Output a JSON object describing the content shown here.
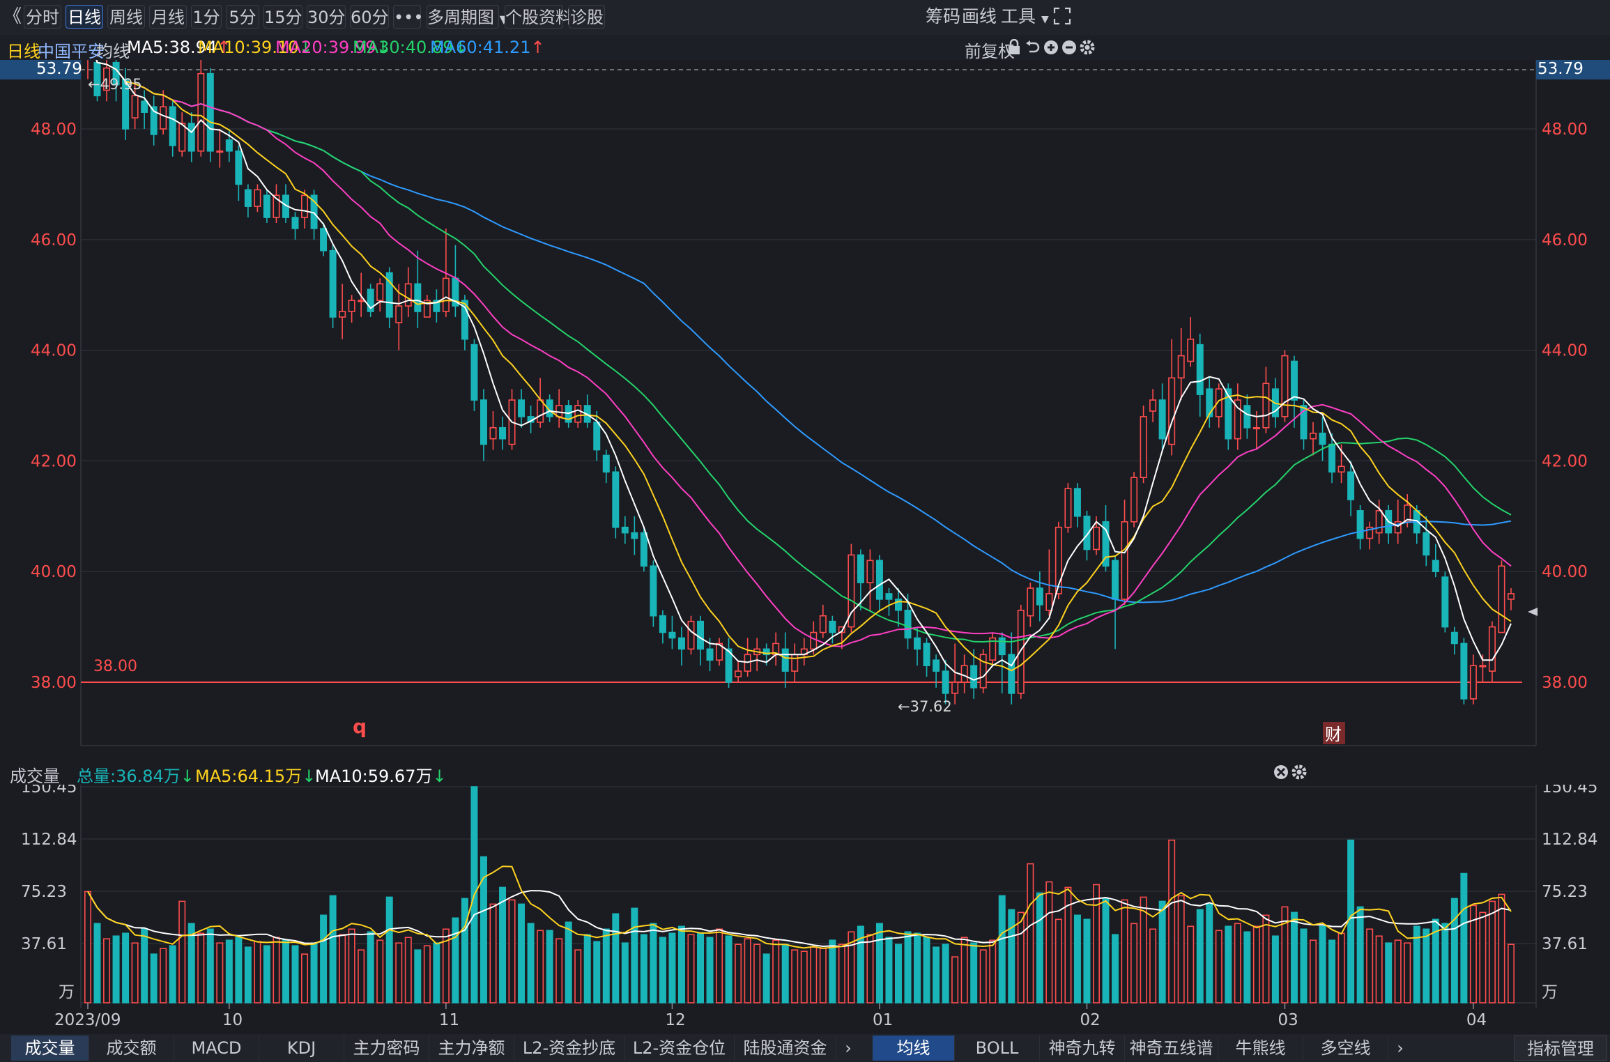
{
  "toolbar": {
    "back": "《",
    "tabs": [
      "分时",
      "日线",
      "周线",
      "月线",
      "1分",
      "5分",
      "15分",
      "30分",
      "60分",
      "•••"
    ],
    "active_tab": "日线",
    "multi_period": "多周期图",
    "stock_info": "个股资料",
    "diagnose": "诊股",
    "chips": "筹码",
    "draw": "画线",
    "tools": "工具",
    "fullscreen_icon": "expand-icon"
  },
  "legend": {
    "period": "日线",
    "stock_name": "中国平安",
    "ma_label": "均线",
    "ma5": "MA5:38.94",
    "ma10": "MA10:39.10",
    "ma20": "MA20:39.99",
    "ma30": "MA30:40.89",
    "ma60": "MA60:41.21",
    "ma5_arrow": "↑",
    "ma10_arrow": "↓",
    "ma20_arrow": "↓",
    "ma30_arrow": "↓",
    "ma60_arrow": "↑",
    "adjust": "前复权"
  },
  "colors": {
    "up": "#ff4d4d",
    "down": "#19b5b8",
    "ma5": "#ffffff",
    "ma10": "#ffd21f",
    "ma20": "#ff3fc4",
    "ma30": "#25d36b",
    "ma60": "#2f9bff",
    "axis_red": "#ff4d4d"
  },
  "price_axis": {
    "top_label": "53.79",
    "ticks": [
      "48.00",
      "46.00",
      "44.00",
      "42.00",
      "40.00",
      "38.00"
    ],
    "support_line_label": "38.00",
    "high_marker": "←49.95",
    "low_marker": "←37.62",
    "marker_q": "q",
    "marker_cai": "财"
  },
  "volume": {
    "title": "成交量",
    "total": "总量:36.84万",
    "ma5": "MA5:64.15万",
    "ma10": "MA10:59.67万",
    "ticks": [
      "150.45",
      "112.84",
      "75.23",
      "37.61"
    ],
    "unit": "万"
  },
  "date_axis": [
    "2023/09",
    "10",
    "11",
    "12",
    "01",
    "02",
    "03",
    "04"
  ],
  "bottom_tabs_left": [
    "成交量",
    "成交额",
    "MACD",
    "KDJ",
    "主力密码",
    "主力净额",
    "L2-资金抄底",
    "L2-资金仓位",
    "陆股通资金"
  ],
  "bottom_tabs_right": [
    "均线",
    "BOLL",
    "神奇九转",
    "神奇五线谱",
    "牛熊线",
    "多空线"
  ],
  "bottom_active_left": "成交量",
  "bottom_active_right": "均线",
  "indicator_manage": "指标管理",
  "chart_data": {
    "type": "candlestick",
    "price_range": [
      36.75,
      53.79
    ],
    "volume_range": [
      0,
      150.45
    ],
    "months": [
      "2023/09",
      "10",
      "11",
      "12",
      "01",
      "02",
      "03",
      "04"
    ],
    "candles": [
      [
        49.4,
        49.8,
        48.9,
        49.95,
        75
      ],
      [
        49.2,
        48.6,
        48.5,
        49.4,
        52
      ],
      [
        48.7,
        49.1,
        48.5,
        49.3,
        41
      ],
      [
        49.2,
        48.8,
        48.5,
        49.4,
        43
      ],
      [
        48.9,
        48.0,
        47.8,
        49.1,
        45
      ],
      [
        48.2,
        48.6,
        48.0,
        48.9,
        38
      ],
      [
        48.5,
        48.3,
        48.0,
        48.7,
        48
      ],
      [
        48.4,
        47.9,
        47.7,
        48.6,
        30
      ],
      [
        48.0,
        48.4,
        47.9,
        48.7,
        34
      ],
      [
        48.4,
        47.7,
        47.5,
        48.5,
        36
      ],
      [
        47.6,
        48.1,
        47.5,
        48.3,
        68
      ],
      [
        48.1,
        47.6,
        47.4,
        48.3,
        52
      ],
      [
        47.6,
        49.0,
        47.5,
        49.3,
        45
      ],
      [
        49.0,
        47.6,
        47.4,
        49.1,
        48
      ],
      [
        47.6,
        47.6,
        47.3,
        48.0,
        38
      ],
      [
        47.8,
        47.6,
        47.4,
        48.0,
        40
      ],
      [
        47.6,
        47.0,
        46.7,
        47.7,
        42
      ],
      [
        46.9,
        46.6,
        46.4,
        47.0,
        35
      ],
      [
        46.6,
        46.9,
        46.5,
        47.0,
        39
      ],
      [
        46.8,
        46.4,
        46.3,
        46.9,
        36
      ],
      [
        46.4,
        46.8,
        46.3,
        47.0,
        42
      ],
      [
        46.8,
        46.4,
        46.3,
        47.0,
        40
      ],
      [
        46.4,
        46.2,
        46.0,
        46.5,
        36
      ],
      [
        46.4,
        46.8,
        46.2,
        46.9,
        30
      ],
      [
        46.8,
        46.2,
        46.0,
        46.9,
        38
      ],
      [
        46.2,
        45.8,
        45.7,
        46.3,
        58
      ],
      [
        45.8,
        44.6,
        44.4,
        45.9,
        72
      ],
      [
        44.6,
        44.7,
        44.2,
        45.2,
        44
      ],
      [
        44.7,
        44.9,
        44.5,
        45.0,
        48
      ],
      [
        44.9,
        44.9,
        44.6,
        45.4,
        33
      ],
      [
        45.1,
        44.7,
        44.6,
        45.2,
        46
      ],
      [
        44.9,
        45.2,
        44.7,
        45.3,
        40
      ],
      [
        45.4,
        44.6,
        44.4,
        45.5,
        71
      ],
      [
        44.5,
        44.8,
        44.0,
        45.2,
        38
      ],
      [
        44.8,
        45.2,
        44.6,
        45.5,
        42
      ],
      [
        45.2,
        44.7,
        44.4,
        45.8,
        33
      ],
      [
        44.6,
        44.9,
        44.6,
        45.0,
        36
      ],
      [
        44.9,
        44.7,
        44.5,
        45.1,
        38
      ],
      [
        44.7,
        45.3,
        44.6,
        46.2,
        48
      ],
      [
        45.3,
        44.8,
        44.6,
        45.9,
        56
      ],
      [
        44.9,
        44.2,
        44.0,
        45.0,
        70
      ],
      [
        44.1,
        43.1,
        42.9,
        44.2,
        152
      ],
      [
        43.1,
        42.3,
        42.0,
        43.3,
        100
      ],
      [
        42.4,
        42.6,
        42.2,
        42.9,
        66
      ],
      [
        42.6,
        42.4,
        42.2,
        42.8,
        78
      ],
      [
        42.3,
        43.1,
        42.2,
        43.3,
        69
      ],
      [
        43.1,
        42.8,
        42.6,
        43.3,
        66
      ],
      [
        42.8,
        42.7,
        42.5,
        43.0,
        52
      ],
      [
        42.7,
        43.1,
        42.6,
        43.5,
        47
      ],
      [
        43.1,
        42.8,
        42.7,
        43.2,
        47
      ],
      [
        42.8,
        43.0,
        42.6,
        43.3,
        41
      ],
      [
        43.0,
        42.7,
        42.6,
        43.1,
        53
      ],
      [
        42.7,
        43.0,
        42.6,
        43.1,
        33
      ],
      [
        43.0,
        42.7,
        42.6,
        43.2,
        44
      ],
      [
        42.7,
        42.2,
        42.0,
        42.9,
        39
      ],
      [
        42.1,
        41.8,
        41.6,
        42.2,
        48
      ],
      [
        41.8,
        40.8,
        40.6,
        41.9,
        59
      ],
      [
        40.8,
        40.7,
        40.5,
        41.0,
        38
      ],
      [
        40.7,
        40.6,
        40.3,
        41.0,
        63
      ],
      [
        40.7,
        40.1,
        40.0,
        40.8,
        44
      ],
      [
        40.1,
        39.2,
        39.0,
        40.2,
        52
      ],
      [
        39.2,
        38.9,
        38.7,
        39.3,
        42
      ],
      [
        38.9,
        38.8,
        38.6,
        39.2,
        45
      ],
      [
        38.8,
        38.6,
        38.3,
        39.0,
        50
      ],
      [
        38.6,
        39.1,
        38.5,
        39.2,
        44
      ],
      [
        39.1,
        38.6,
        38.3,
        39.2,
        45
      ],
      [
        38.6,
        38.4,
        38.2,
        38.8,
        42
      ],
      [
        38.4,
        38.7,
        38.3,
        38.8,
        48
      ],
      [
        38.6,
        38.0,
        37.9,
        38.8,
        43
      ],
      [
        38.1,
        38.2,
        38.0,
        38.4,
        37
      ],
      [
        38.2,
        38.5,
        38.1,
        38.8,
        41
      ],
      [
        38.5,
        38.6,
        38.2,
        38.8,
        37
      ],
      [
        38.6,
        38.5,
        38.3,
        38.7,
        30
      ],
      [
        38.5,
        38.7,
        38.3,
        38.9,
        40
      ],
      [
        38.6,
        38.2,
        37.9,
        38.9,
        37
      ],
      [
        38.2,
        38.5,
        38.0,
        38.7,
        33
      ],
      [
        38.5,
        38.6,
        38.3,
        38.8,
        32
      ],
      [
        38.6,
        38.9,
        38.5,
        39.1,
        35
      ],
      [
        38.9,
        39.2,
        38.8,
        39.4,
        34
      ],
      [
        39.1,
        38.9,
        38.7,
        39.2,
        40
      ],
      [
        38.9,
        39.0,
        38.6,
        39.0,
        37
      ],
      [
        39.0,
        40.3,
        38.9,
        40.5,
        46
      ],
      [
        40.3,
        39.8,
        39.3,
        40.4,
        50
      ],
      [
        39.8,
        40.2,
        39.3,
        40.4,
        44
      ],
      [
        40.2,
        39.5,
        39.3,
        40.3,
        52
      ],
      [
        39.6,
        39.5,
        39.2,
        39.7,
        42
      ],
      [
        39.5,
        39.3,
        39.0,
        39.7,
        37
      ],
      [
        39.3,
        38.8,
        38.6,
        39.6,
        46
      ],
      [
        38.8,
        38.6,
        38.3,
        39.0,
        45
      ],
      [
        38.7,
        38.3,
        38.1,
        38.8,
        42
      ],
      [
        38.4,
        38.2,
        37.9,
        38.5,
        35
      ],
      [
        38.2,
        37.8,
        37.6,
        38.4,
        37
      ],
      [
        37.8,
        38.0,
        37.6,
        38.7,
        28
      ],
      [
        38.0,
        38.3,
        37.8,
        38.5,
        42
      ],
      [
        38.3,
        37.9,
        37.7,
        38.6,
        38
      ],
      [
        37.9,
        38.5,
        37.8,
        38.6,
        33
      ],
      [
        38.4,
        38.8,
        38.3,
        38.9,
        40
      ],
      [
        38.8,
        38.5,
        37.8,
        38.9,
        72
      ],
      [
        38.5,
        37.8,
        37.6,
        38.9,
        62
      ],
      [
        37.8,
        39.3,
        37.7,
        39.4,
        60
      ],
      [
        39.2,
        39.7,
        39.0,
        39.8,
        95
      ],
      [
        39.7,
        39.4,
        39.1,
        40.0,
        74
      ],
      [
        39.3,
        39.6,
        39.2,
        40.4,
        82
      ],
      [
        39.6,
        40.8,
        39.5,
        40.9,
        55
      ],
      [
        40.8,
        41.5,
        40.7,
        41.6,
        78
      ],
      [
        41.5,
        41.0,
        40.8,
        41.6,
        58
      ],
      [
        41.0,
        40.4,
        40.2,
        41.1,
        55
      ],
      [
        40.4,
        40.8,
        40.3,
        41.0,
        80
      ],
      [
        40.9,
        40.1,
        40.0,
        41.2,
        70
      ],
      [
        40.2,
        39.5,
        38.6,
        40.3,
        44
      ],
      [
        39.5,
        40.9,
        39.4,
        41.3,
        69
      ],
      [
        40.9,
        41.7,
        40.8,
        41.8,
        52
      ],
      [
        41.7,
        42.8,
        41.6,
        43.0,
        71
      ],
      [
        42.9,
        43.1,
        42.7,
        43.3,
        48
      ],
      [
        43.1,
        42.4,
        42.2,
        43.4,
        68
      ],
      [
        42.3,
        43.5,
        42.1,
        44.2,
        112
      ],
      [
        43.5,
        43.9,
        43.1,
        44.4,
        72
      ],
      [
        43.8,
        44.2,
        43.7,
        44.6,
        50
      ],
      [
        44.1,
        43.2,
        42.8,
        44.3,
        62
      ],
      [
        43.3,
        42.8,
        42.6,
        43.5,
        66
      ],
      [
        42.8,
        43.3,
        42.6,
        43.4,
        47
      ],
      [
        43.3,
        42.4,
        42.2,
        43.4,
        50
      ],
      [
        42.4,
        43.1,
        42.2,
        43.4,
        52
      ],
      [
        43.0,
        42.6,
        42.4,
        43.2,
        46
      ],
      [
        42.6,
        42.6,
        42.2,
        42.9,
        50
      ],
      [
        42.6,
        43.4,
        42.5,
        43.7,
        58
      ],
      [
        43.3,
        42.8,
        42.6,
        43.5,
        43
      ],
      [
        42.8,
        43.9,
        42.7,
        44.0,
        64
      ],
      [
        43.8,
        43.1,
        42.6,
        43.9,
        60
      ],
      [
        43.0,
        42.4,
        42.2,
        43.1,
        48
      ],
      [
        42.4,
        42.5,
        42.1,
        42.7,
        40
      ],
      [
        42.5,
        42.3,
        42.0,
        42.8,
        50
      ],
      [
        42.3,
        41.8,
        41.6,
        42.5,
        40
      ],
      [
        41.8,
        41.9,
        41.6,
        42.3,
        45
      ],
      [
        41.8,
        41.3,
        41.0,
        42.0,
        112
      ],
      [
        41.1,
        40.6,
        40.4,
        41.2,
        64
      ],
      [
        40.6,
        40.8,
        40.4,
        40.9,
        48
      ],
      [
        40.7,
        41.1,
        40.5,
        41.3,
        43
      ],
      [
        41.1,
        40.7,
        40.5,
        41.2,
        38
      ],
      [
        40.7,
        40.9,
        40.5,
        41.3,
        40
      ],
      [
        40.9,
        41.2,
        40.8,
        41.4,
        38
      ],
      [
        41.1,
        40.7,
        40.5,
        41.2,
        50
      ],
      [
        40.7,
        40.3,
        40.1,
        41.0,
        48
      ],
      [
        40.2,
        40.0,
        39.9,
        40.5,
        55
      ],
      [
        39.9,
        39.0,
        38.9,
        40.0,
        52
      ],
      [
        38.9,
        38.7,
        38.5,
        39.0,
        70
      ],
      [
        38.7,
        37.7,
        37.6,
        38.8,
        88
      ],
      [
        37.7,
        38.3,
        37.6,
        38.5,
        65
      ],
      [
        38.3,
        38.3,
        38.0,
        38.5,
        60
      ],
      [
        38.2,
        39.0,
        38.0,
        39.1,
        68
      ],
      [
        38.9,
        40.1,
        38.9,
        40.2,
        73
      ],
      [
        39.5,
        39.6,
        39.3,
        39.7,
        37
      ]
    ]
  }
}
